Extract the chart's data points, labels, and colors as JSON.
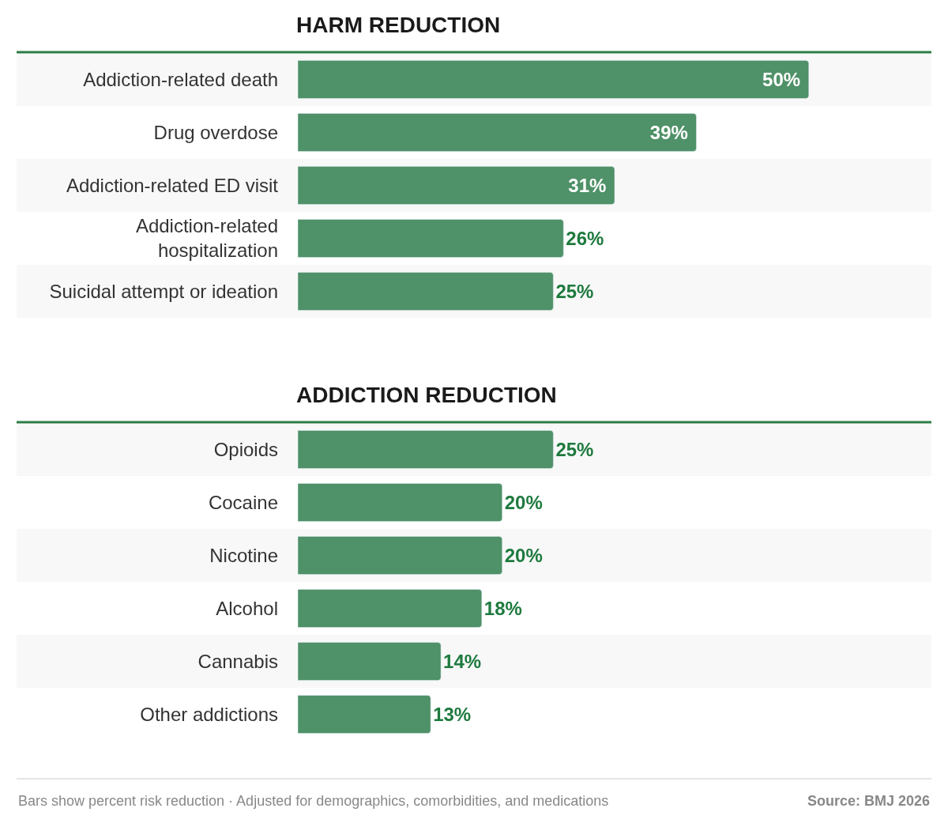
{
  "chart_data": [
    {
      "type": "bar",
      "orientation": "horizontal",
      "title": "HARM REDUCTION",
      "categories": [
        "Addiction-related death",
        "Drug overdose",
        "Addiction-related ED visit",
        "Addiction-related hospitalization",
        "Suicidal attempt or ideation"
      ],
      "values": [
        50,
        39,
        31,
        26,
        25
      ],
      "color": "#4f9168",
      "value_labels": [
        "50%",
        "39%",
        "31%",
        "26%",
        "25%"
      ]
    },
    {
      "type": "bar",
      "orientation": "horizontal",
      "title": "ADDICTION REDUCTION",
      "categories": [
        "Opioids",
        "Cocaine",
        "Nicotine",
        "Alcohol",
        "Cannabis",
        "Other addictions"
      ],
      "values": [
        25,
        20,
        20,
        18,
        14,
        13
      ],
      "color": "#4f9168",
      "value_labels": [
        "25%",
        "20%",
        "20%",
        "18%",
        "14%",
        "13%"
      ],
      "annotations": [
        "Bars show percent risk reduction · Adjusted for demographics, comorbidities, and medications",
        "Source: BMJ 2026"
      ]
    }
  ]
}
